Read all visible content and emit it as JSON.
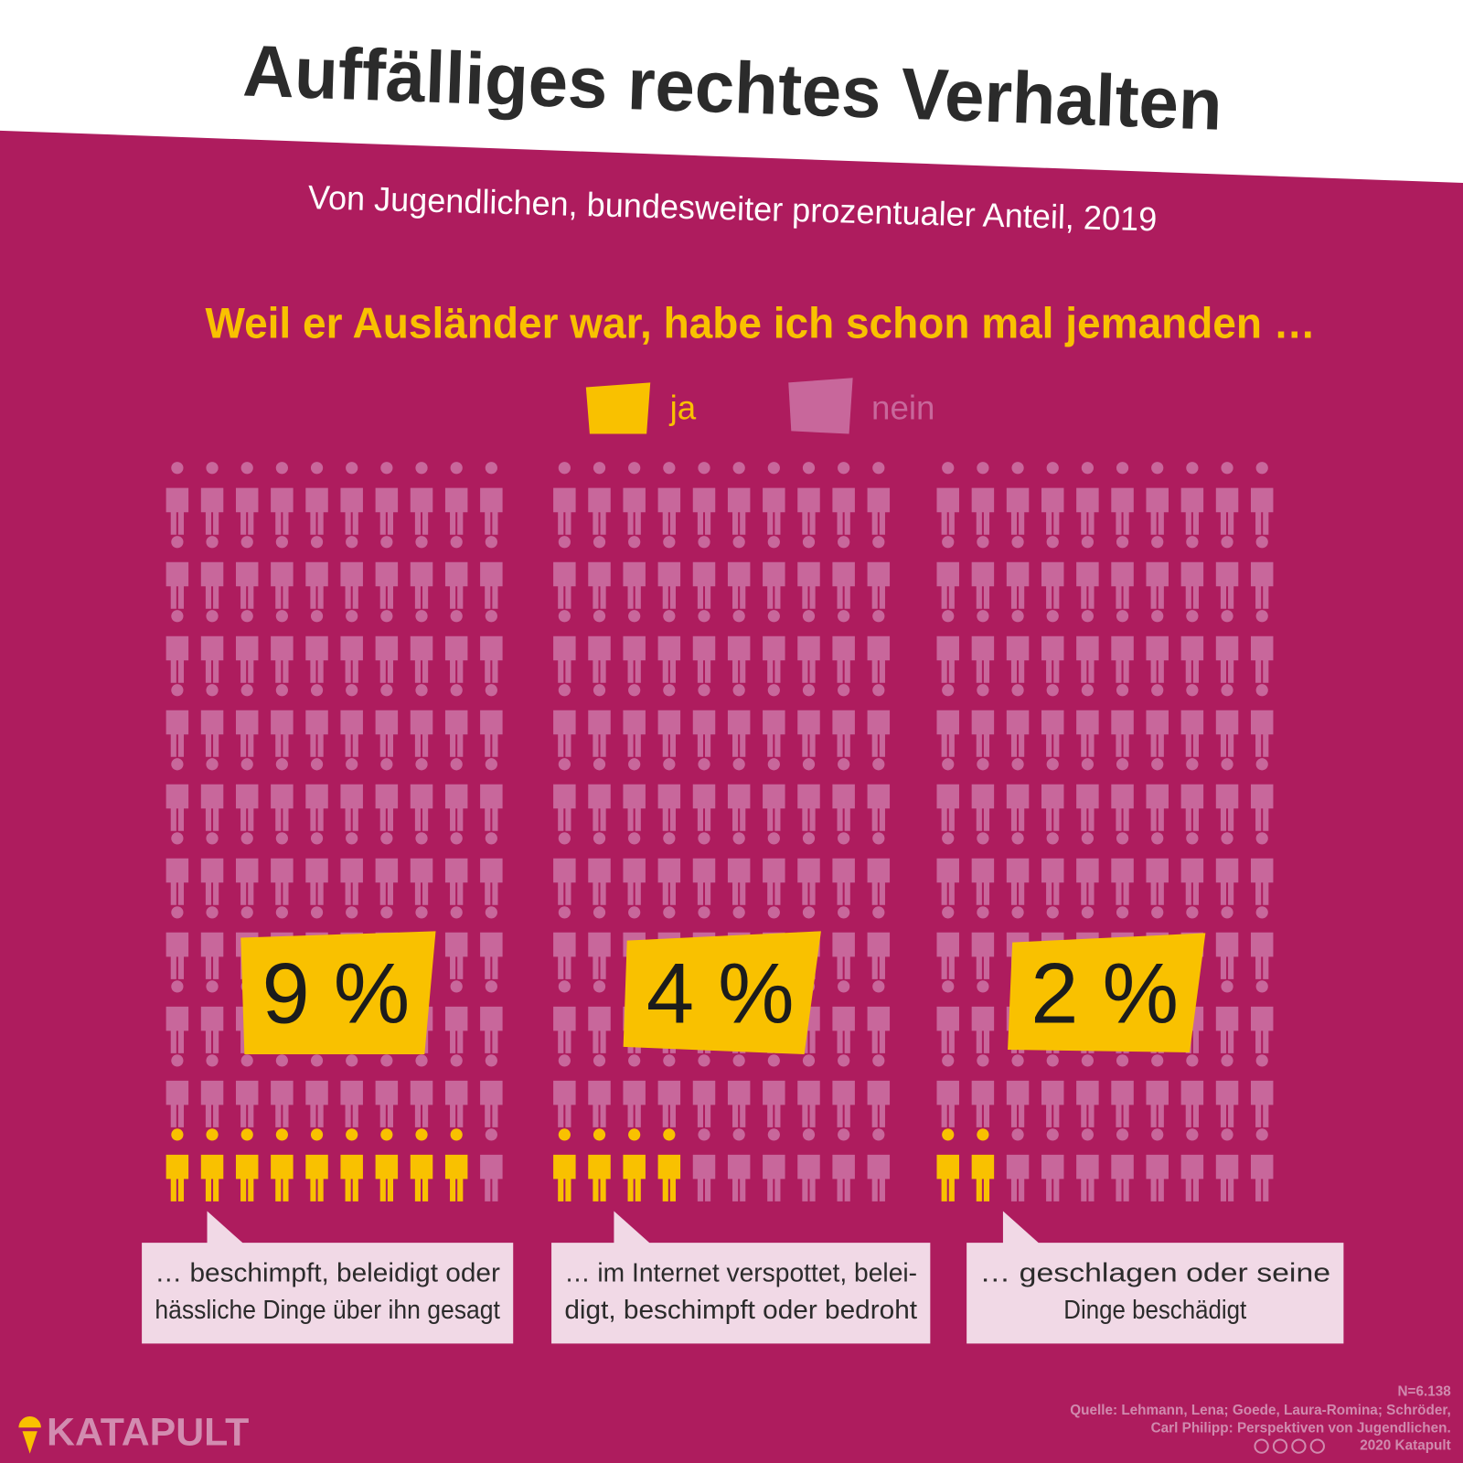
{
  "chart_data": {
    "type": "pictogram",
    "title": "Auffälliges rechtes Verhalten",
    "subtitle": "Von Jugendlichen, bundesweiter prozentualer Anteil, 2019",
    "question": "Weil er Ausländer war, habe ich schon mal jemanden …",
    "categories": [
      [
        "… beschimpft, beleidigt oder",
        "hässliche Dinge über ihn gesagt"
      ],
      [
        "… im Internet verspottet, belei-",
        "digt, beschimpft oder bedroht"
      ],
      [
        "… geschlagen oder seine",
        "Dinge beschädigt"
      ]
    ],
    "series": [
      {
        "name": "ja",
        "color": "#f9c100",
        "values": [
          9,
          4,
          2
        ],
        "value_labels": [
          "9 %",
          "4 %",
          "2 %"
        ]
      },
      {
        "name": "nein",
        "color": "#c8679b",
        "values": [
          91,
          96,
          98
        ]
      }
    ]
  },
  "footer": {
    "n": "N=6.138",
    "source": [
      "Quelle: Lehmann, Lena; Goede, Laura-Romina; Schröder,",
      "Carl Philipp: Perspektiven von Jugendlichen."
    ],
    "copyright": "2020 Katapult",
    "logo": "KATAPULT"
  }
}
